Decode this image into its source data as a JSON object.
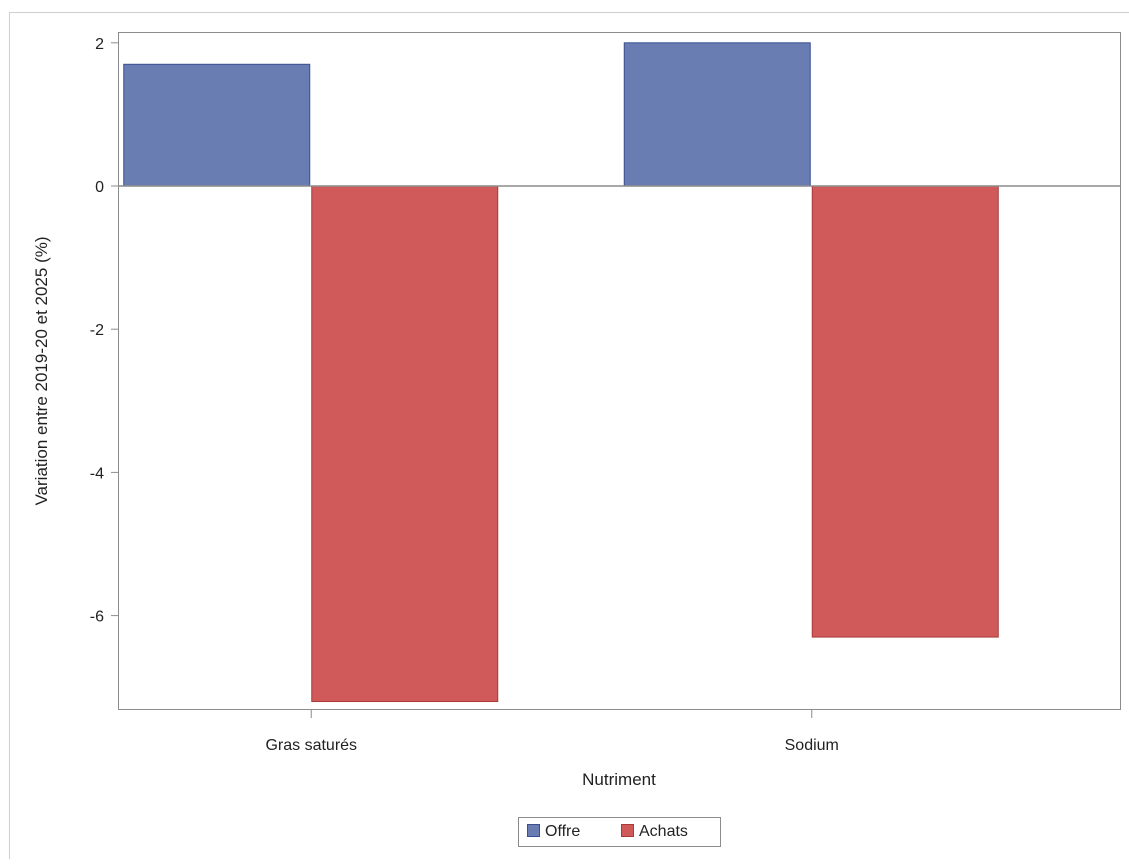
{
  "chart_data": {
    "type": "bar",
    "categories": [
      "Gras saturés",
      "Sodium"
    ],
    "series": [
      {
        "name": "Offre",
        "color": "#6a7db3",
        "border": "#3a4f8f",
        "values": [
          1.7,
          2.0
        ]
      },
      {
        "name": "Achats",
        "color": "#d05a5a",
        "border": "#a83a3a",
        "values": [
          -7.2,
          -6.3
        ]
      }
    ],
    "xlabel": "Nutriment",
    "ylabel": "Variation entre 2019-20 et 2025 (%)",
    "ylim": [
      -7.3,
      2.0
    ],
    "yticks": [
      2,
      0,
      -2,
      -4,
      -6
    ],
    "grid": false,
    "legend_position": "bottom-center"
  }
}
